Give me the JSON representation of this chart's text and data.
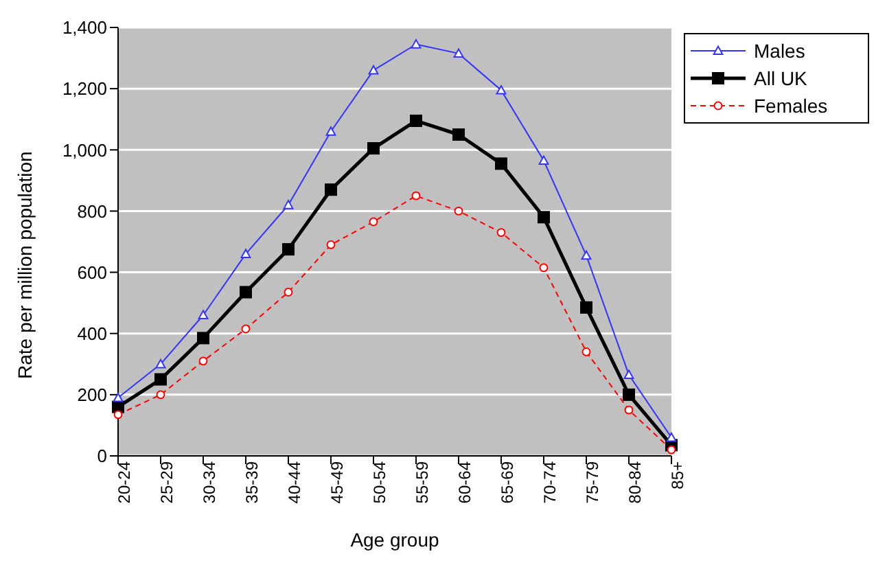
{
  "chart_data": {
    "type": "line",
    "xlabel": "Age group",
    "ylabel": "Rate per million population",
    "categories": [
      "20-24",
      "25-29",
      "30-34",
      "35-39",
      "40-44",
      "45-49",
      "50-54",
      "55-59",
      "60-64",
      "65-69",
      "70-74",
      "75-79",
      "80-84",
      "85+"
    ],
    "series": [
      {
        "name": "Males",
        "color": "#3333ff",
        "marker": "triangle",
        "line_style": "solid",
        "values": [
          190,
          300,
          460,
          660,
          820,
          1060,
          1260,
          1345,
          1315,
          1195,
          965,
          655,
          265,
          60
        ]
      },
      {
        "name": "All UK",
        "color": "#000000",
        "marker": "square",
        "line_style": "solid",
        "values": [
          160,
          250,
          385,
          535,
          675,
          870,
          1005,
          1095,
          1050,
          955,
          780,
          485,
          200,
          35
        ]
      },
      {
        "name": "Females",
        "color": "#ff0000",
        "marker": "circle",
        "line_style": "dashed",
        "values": [
          135,
          200,
          310,
          415,
          535,
          690,
          765,
          850,
          800,
          730,
          615,
          340,
          150,
          20
        ]
      }
    ],
    "ylim": [
      0,
      1400
    ],
    "yticks": [
      0,
      200,
      400,
      600,
      800,
      {
        "value": 1000,
        "label": "1,000"
      },
      {
        "value": 1200,
        "label": "1,200"
      },
      {
        "value": 1400,
        "label": "1,400"
      }
    ],
    "grid": "y",
    "legend": "top right"
  }
}
